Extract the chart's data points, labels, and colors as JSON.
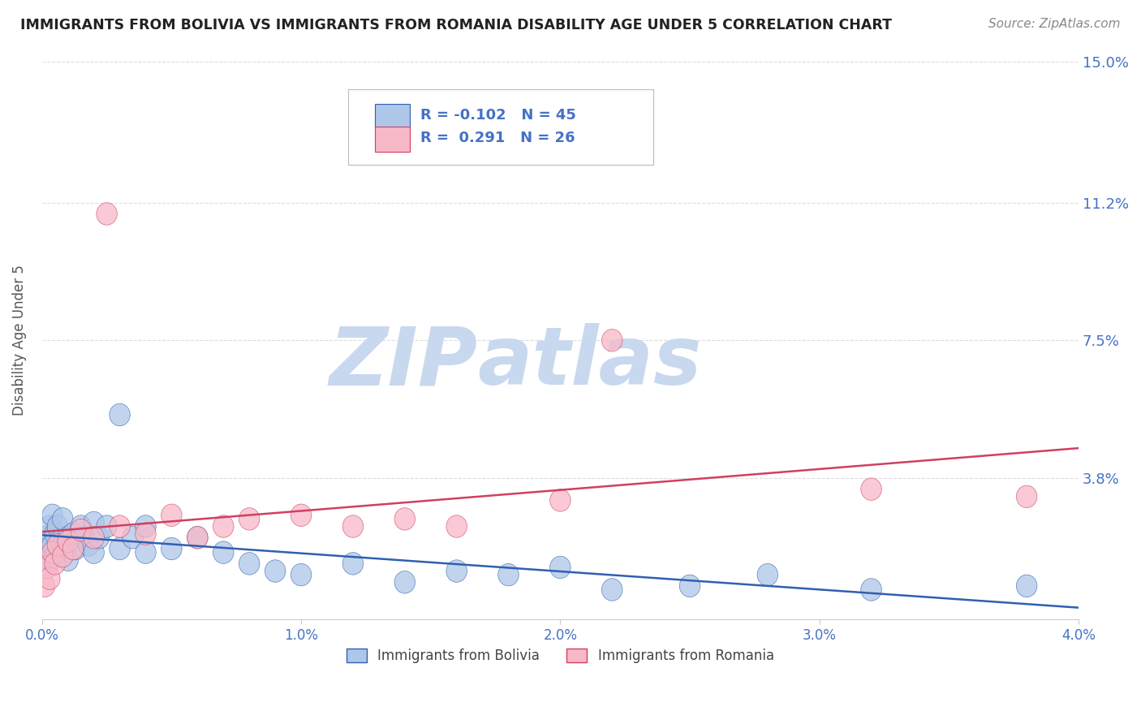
{
  "title": "IMMIGRANTS FROM BOLIVIA VS IMMIGRANTS FROM ROMANIA DISABILITY AGE UNDER 5 CORRELATION CHART",
  "source": "Source: ZipAtlas.com",
  "ylabel": "Disability Age Under 5",
  "legend_bolivia": "Immigrants from Bolivia",
  "legend_romania": "Immigrants from Romania",
  "R_bolivia": -0.102,
  "N_bolivia": 45,
  "R_romania": 0.291,
  "N_romania": 26,
  "color_bolivia": "#aec6e8",
  "color_romania": "#f7b8c8",
  "line_color_bolivia": "#3060b0",
  "line_color_romania": "#d04060",
  "axis_label_color": "#4472c4",
  "xlim": [
    0.0,
    0.04
  ],
  "ylim": [
    0.0,
    0.15
  ],
  "yticks": [
    0.0,
    0.038,
    0.075,
    0.112,
    0.15
  ],
  "ytick_labels": [
    "",
    "3.8%",
    "7.5%",
    "11.2%",
    "15.0%"
  ],
  "xticks": [
    0.0,
    0.01,
    0.02,
    0.03,
    0.04
  ],
  "xtick_labels": [
    "0.0%",
    "1.0%",
    "2.0%",
    "3.0%",
    "4.0%"
  ],
  "bolivia_x": [
    0.0001,
    0.0002,
    0.0003,
    0.0003,
    0.0004,
    0.0004,
    0.0005,
    0.0005,
    0.0006,
    0.0007,
    0.0008,
    0.0008,
    0.0009,
    0.001,
    0.001,
    0.0012,
    0.0013,
    0.0015,
    0.0016,
    0.0018,
    0.002,
    0.002,
    0.0022,
    0.0025,
    0.003,
    0.003,
    0.0035,
    0.004,
    0.004,
    0.005,
    0.006,
    0.007,
    0.008,
    0.009,
    0.01,
    0.012,
    0.014,
    0.016,
    0.018,
    0.02,
    0.022,
    0.025,
    0.028,
    0.032,
    0.038
  ],
  "bolivia_y": [
    0.022,
    0.019,
    0.025,
    0.016,
    0.02,
    0.028,
    0.023,
    0.017,
    0.025,
    0.021,
    0.027,
    0.02,
    0.018,
    0.022,
    0.016,
    0.023,
    0.019,
    0.025,
    0.022,
    0.02,
    0.026,
    0.018,
    0.022,
    0.025,
    0.055,
    0.019,
    0.022,
    0.025,
    0.018,
    0.019,
    0.022,
    0.018,
    0.015,
    0.013,
    0.012,
    0.015,
    0.01,
    0.013,
    0.012,
    0.014,
    0.008,
    0.009,
    0.012,
    0.008,
    0.009
  ],
  "romania_x": [
    0.0001,
    0.0002,
    0.0003,
    0.0004,
    0.0005,
    0.0006,
    0.0008,
    0.001,
    0.0012,
    0.0015,
    0.002,
    0.0025,
    0.003,
    0.004,
    0.005,
    0.006,
    0.007,
    0.008,
    0.01,
    0.012,
    0.014,
    0.016,
    0.02,
    0.022,
    0.032,
    0.038
  ],
  "romania_y": [
    0.009,
    0.014,
    0.011,
    0.018,
    0.015,
    0.02,
    0.017,
    0.021,
    0.019,
    0.024,
    0.022,
    0.109,
    0.025,
    0.023,
    0.028,
    0.022,
    0.025,
    0.027,
    0.028,
    0.025,
    0.027,
    0.025,
    0.032,
    0.075,
    0.035,
    0.033
  ],
  "watermark_zip": "ZIP",
  "watermark_atlas": "atlas",
  "watermark_color_zip": "#c8d8ee",
  "watermark_color_atlas": "#c8d8ee",
  "background_color": "#ffffff",
  "grid_color": "#dddddd"
}
